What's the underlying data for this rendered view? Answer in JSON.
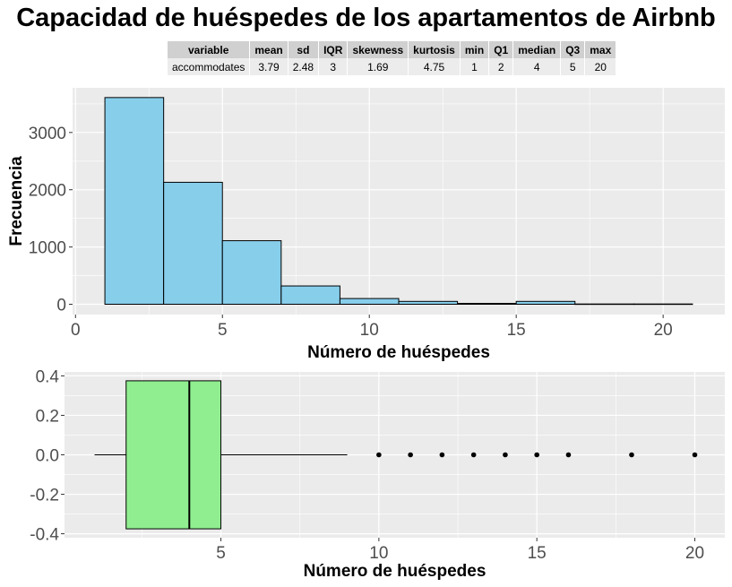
{
  "title": "Capacidad de huéspedes de los apartamentos de Airbnb",
  "stats_table": {
    "headers": [
      "variable",
      "mean",
      "sd",
      "IQR",
      "skewness",
      "kurtosis",
      "min",
      "Q1",
      "median",
      "Q3",
      "max"
    ],
    "row": [
      "accommodates",
      "3.79",
      "2.48",
      "3",
      "1.69",
      "4.75",
      "1",
      "2",
      "4",
      "5",
      "20"
    ]
  },
  "colors": {
    "panel_bg": "#ebebeb",
    "grid": "#ffffff",
    "histogram_fill": "#87ceeb",
    "boxplot_fill": "#90ee90",
    "outline": "#000000",
    "axis_text": "#4d4d4d"
  },
  "chart_data": [
    {
      "type": "bar",
      "subtype": "histogram",
      "xlabel": "Número de huéspedes",
      "ylabel": "Frecuencia",
      "xlim": [
        -0.1,
        22.1
      ],
      "ylim": [
        -180,
        3780
      ],
      "x_ticks": [
        "0",
        "5",
        "10",
        "15",
        "20"
      ],
      "y_ticks": [
        "0",
        "1000",
        "2000",
        "3000"
      ],
      "grid": true,
      "bins": [
        {
          "x0": 1,
          "x1": 3,
          "count": 3610
        },
        {
          "x0": 3,
          "x1": 5,
          "count": 2130
        },
        {
          "x0": 5,
          "x1": 7,
          "count": 1110
        },
        {
          "x0": 7,
          "x1": 9,
          "count": 320
        },
        {
          "x0": 9,
          "x1": 11,
          "count": 100
        },
        {
          "x0": 11,
          "x1": 13,
          "count": 50
        },
        {
          "x0": 13,
          "x1": 15,
          "count": 15
        },
        {
          "x0": 15,
          "x1": 17,
          "count": 50
        },
        {
          "x0": 17,
          "x1": 19,
          "count": 5
        },
        {
          "x0": 19,
          "x1": 21,
          "count": 5
        }
      ]
    },
    {
      "type": "boxplot",
      "orientation": "horizontal",
      "xlabel": "Número de huéspedes",
      "ylabel": "",
      "xlim": [
        0.05,
        20.95
      ],
      "ylim": [
        -0.42,
        0.42
      ],
      "x_ticks": [
        "5",
        "10",
        "15",
        "20"
      ],
      "y_ticks": [
        "0.4",
        "0.2",
        "0.0",
        "-0.2",
        "-0.4"
      ],
      "grid": true,
      "min": 1,
      "q1": 2,
      "median": 4,
      "q3": 5,
      "whisker_high": 9,
      "box_half_height": 0.375,
      "outliers": [
        10,
        11,
        12,
        13,
        14,
        15,
        16,
        18,
        20
      ]
    }
  ]
}
